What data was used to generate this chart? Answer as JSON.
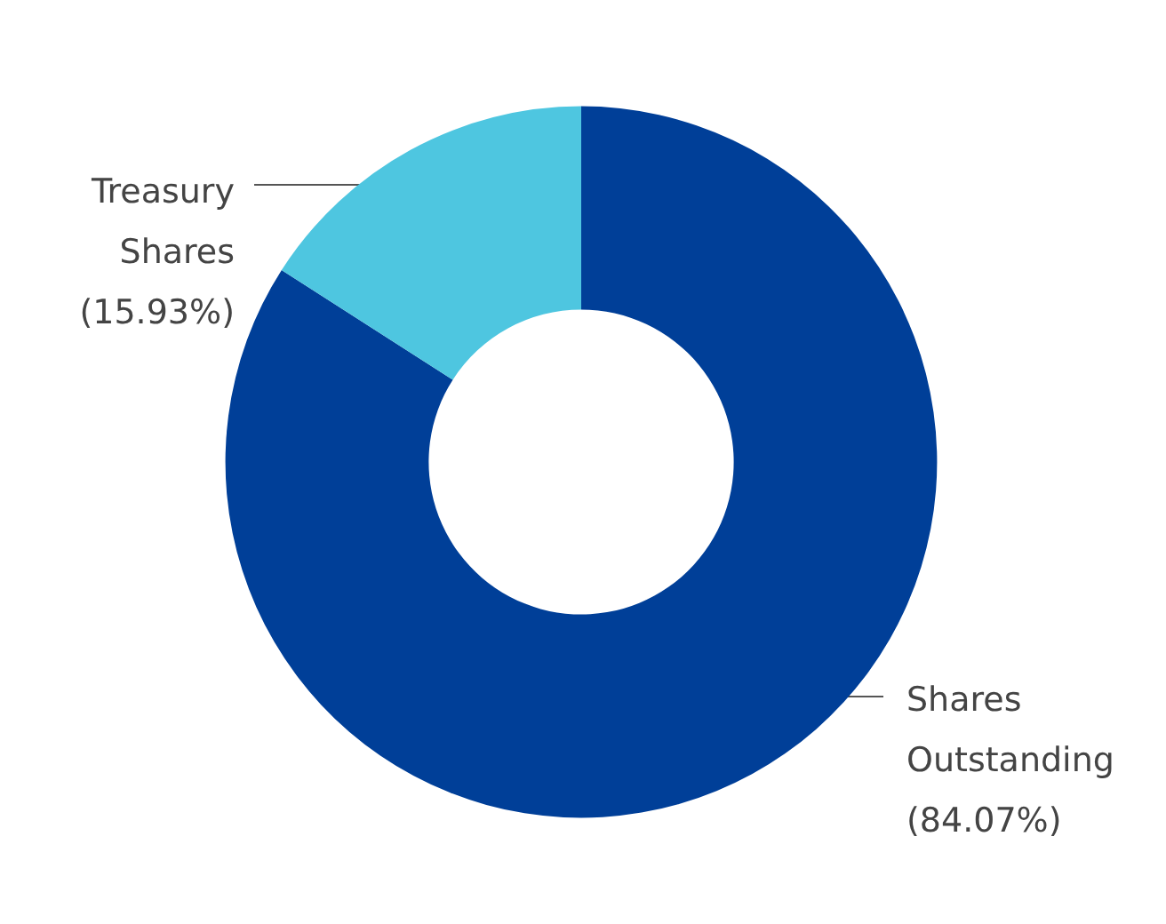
{
  "chart_data": {
    "type": "donut",
    "categories": [
      "Shares Outstanding",
      "Treasury Shares"
    ],
    "values": [
      84.07,
      15.93
    ],
    "colors": [
      "#003f98",
      "#4ec6e0"
    ],
    "value_labels": [
      "(84.07%)",
      "(15.93%)"
    ],
    "legend": false
  }
}
